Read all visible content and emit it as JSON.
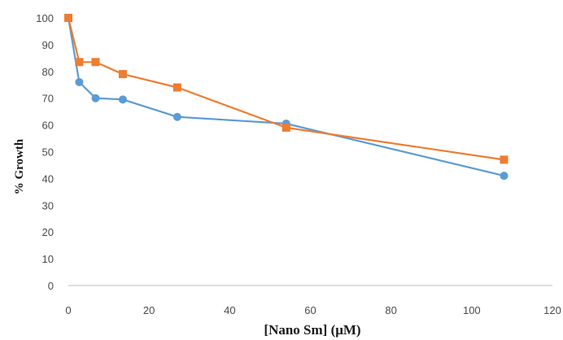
{
  "chart_data": {
    "type": "line",
    "title": "",
    "xlabel": "[Nano Sm] (μM)",
    "ylabel": "% Growth",
    "xlim": [
      0,
      120
    ],
    "ylim": [
      0,
      100
    ],
    "xticks": [
      0,
      20,
      40,
      60,
      80,
      100,
      120
    ],
    "yticks": [
      0,
      10,
      20,
      30,
      40,
      50,
      60,
      70,
      80,
      90,
      100
    ],
    "grid": false,
    "legend": "none",
    "series": [
      {
        "color": "#5b9bd5",
        "marker": "circle",
        "x": [
          0,
          2.7,
          6.75,
          13.5,
          27,
          54,
          108
        ],
        "y": [
          100,
          76,
          70,
          69.5,
          63,
          60.5,
          41
        ]
      },
      {
        "color": "#ed7d31",
        "marker": "square",
        "x": [
          0,
          2.7,
          6.75,
          13.5,
          27,
          54,
          108
        ],
        "y": [
          100,
          83.5,
          83.5,
          79,
          74,
          59,
          47
        ]
      }
    ]
  }
}
